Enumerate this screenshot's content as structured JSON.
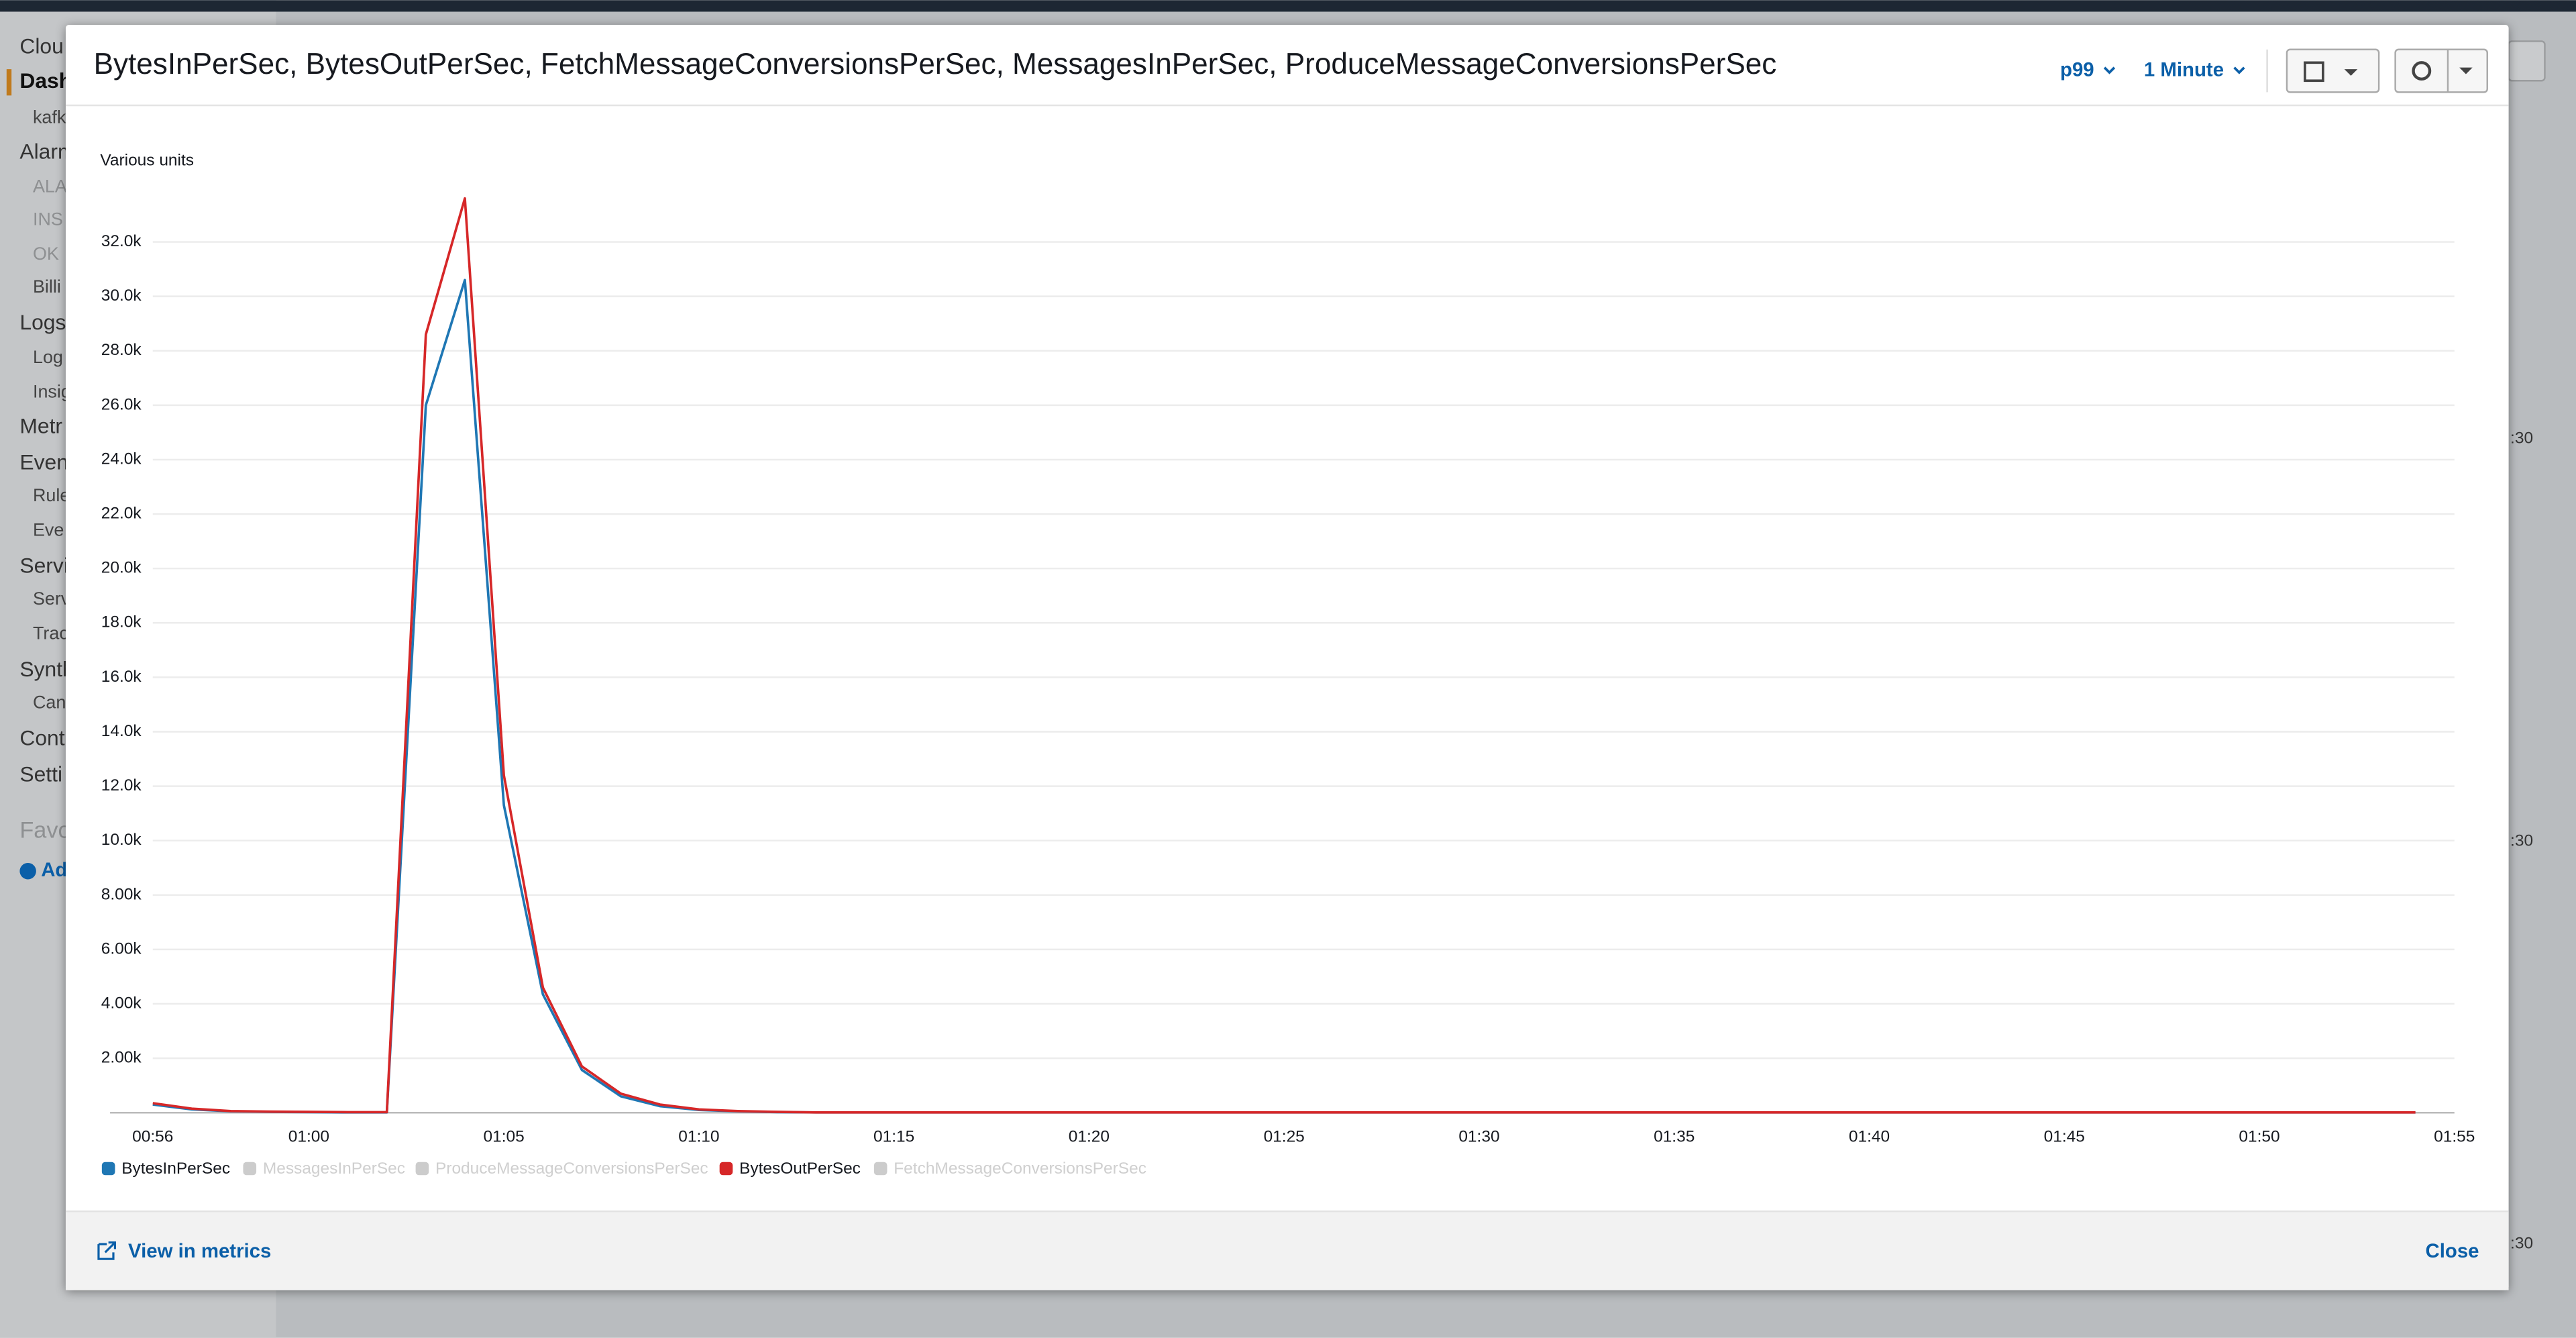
{
  "sidebar": [
    "Clou",
    "Dash",
    "kafk",
    "Alarm",
    "ALA",
    "INS",
    "OK",
    "Billi",
    "Logs",
    "Log",
    "Insig",
    "Metr",
    "Even",
    "Rule",
    "Eve",
    "Servi",
    "Serv",
    "Trac",
    "Synth",
    "Can",
    "Cont",
    "Setti",
    "Favo",
    "Ad"
  ],
  "background_labels": [
    ":30",
    ":30",
    ":30"
  ],
  "modal": {
    "title": "BytesInPerSec, BytesOutPerSec, FetchMessageConversionsPerSec, MessagesInPerSec, ProduceMessageConversionsPerSec",
    "statistic": "p99",
    "period": "1 Minute",
    "view_link": "View in metrics",
    "close": "Close"
  },
  "chart_data": {
    "type": "line",
    "y_label": "Various units",
    "categories": [
      "00:56",
      null,
      null,
      null,
      "01:00",
      null,
      null,
      null,
      null,
      "01:05",
      null,
      null,
      null,
      null,
      "01:10",
      null,
      null,
      null,
      null,
      "01:15",
      null,
      null,
      null,
      null,
      "01:20",
      null,
      null,
      null,
      null,
      "01:25",
      null,
      null,
      null,
      null,
      "01:30",
      null,
      null,
      null,
      null,
      "01:35",
      null,
      null,
      null,
      null,
      "01:40",
      null,
      null,
      null,
      null,
      "01:45",
      null,
      null,
      null,
      null,
      "01:50",
      null,
      null,
      null,
      null,
      "01:55"
    ],
    "series": [
      {
        "name": "BytesInPerSec",
        "color": "#1f77b4",
        "visible": true,
        "values": [
          300,
          120,
          50,
          30,
          20,
          10,
          10,
          26000,
          30600,
          11300,
          4350,
          1570,
          600,
          240,
          100,
          50,
          20,
          10,
          10,
          10,
          10,
          10,
          10,
          10,
          10,
          10,
          10,
          10,
          10,
          10,
          10,
          10,
          10,
          10,
          10,
          10,
          10,
          10,
          10,
          10,
          10,
          10,
          10,
          10,
          10,
          10,
          10,
          10,
          10,
          10,
          10,
          10,
          10,
          10,
          10,
          10,
          10,
          10,
          10,
          null
        ]
      },
      {
        "name": "MessagesInPerSec",
        "color": "#cccccc",
        "visible": false
      },
      {
        "name": "ProduceMessageConversionsPerSec",
        "color": "#cccccc",
        "visible": false
      },
      {
        "name": "BytesOutPerSec",
        "color": "#d62728",
        "visible": true,
        "values": [
          350,
          150,
          60,
          40,
          30,
          20,
          20,
          28600,
          33600,
          12400,
          4600,
          1700,
          700,
          300,
          120,
          60,
          30,
          10,
          10,
          10,
          10,
          10,
          10,
          10,
          10,
          10,
          10,
          10,
          10,
          10,
          10,
          10,
          10,
          10,
          10,
          10,
          10,
          10,
          10,
          10,
          10,
          10,
          10,
          10,
          10,
          10,
          10,
          10,
          10,
          10,
          10,
          10,
          10,
          10,
          10,
          10,
          10,
          10,
          10,
          null
        ]
      },
      {
        "name": "FetchMessageConversionsPerSec",
        "color": "#cccccc",
        "visible": false
      }
    ],
    "ylim": [
      0,
      34000
    ],
    "yticks": [
      {
        "value": 2000,
        "label": "2.00k"
      },
      {
        "value": 4000,
        "label": "4.00k"
      },
      {
        "value": 6000,
        "label": "6.00k"
      },
      {
        "value": 8000,
        "label": "8.00k"
      },
      {
        "value": 10000,
        "label": "10.0k"
      },
      {
        "value": 12000,
        "label": "12.0k"
      },
      {
        "value": 14000,
        "label": "14.0k"
      },
      {
        "value": 16000,
        "label": "16.0k"
      },
      {
        "value": 18000,
        "label": "18.0k"
      },
      {
        "value": 20000,
        "label": "20.0k"
      },
      {
        "value": 22000,
        "label": "22.0k"
      },
      {
        "value": 24000,
        "label": "24.0k"
      },
      {
        "value": 26000,
        "label": "26.0k"
      },
      {
        "value": 28000,
        "label": "28.0k"
      },
      {
        "value": 30000,
        "label": "30.0k"
      },
      {
        "value": 32000,
        "label": "32.0k"
      }
    ],
    "grid": true,
    "legend": "bottom-left"
  }
}
